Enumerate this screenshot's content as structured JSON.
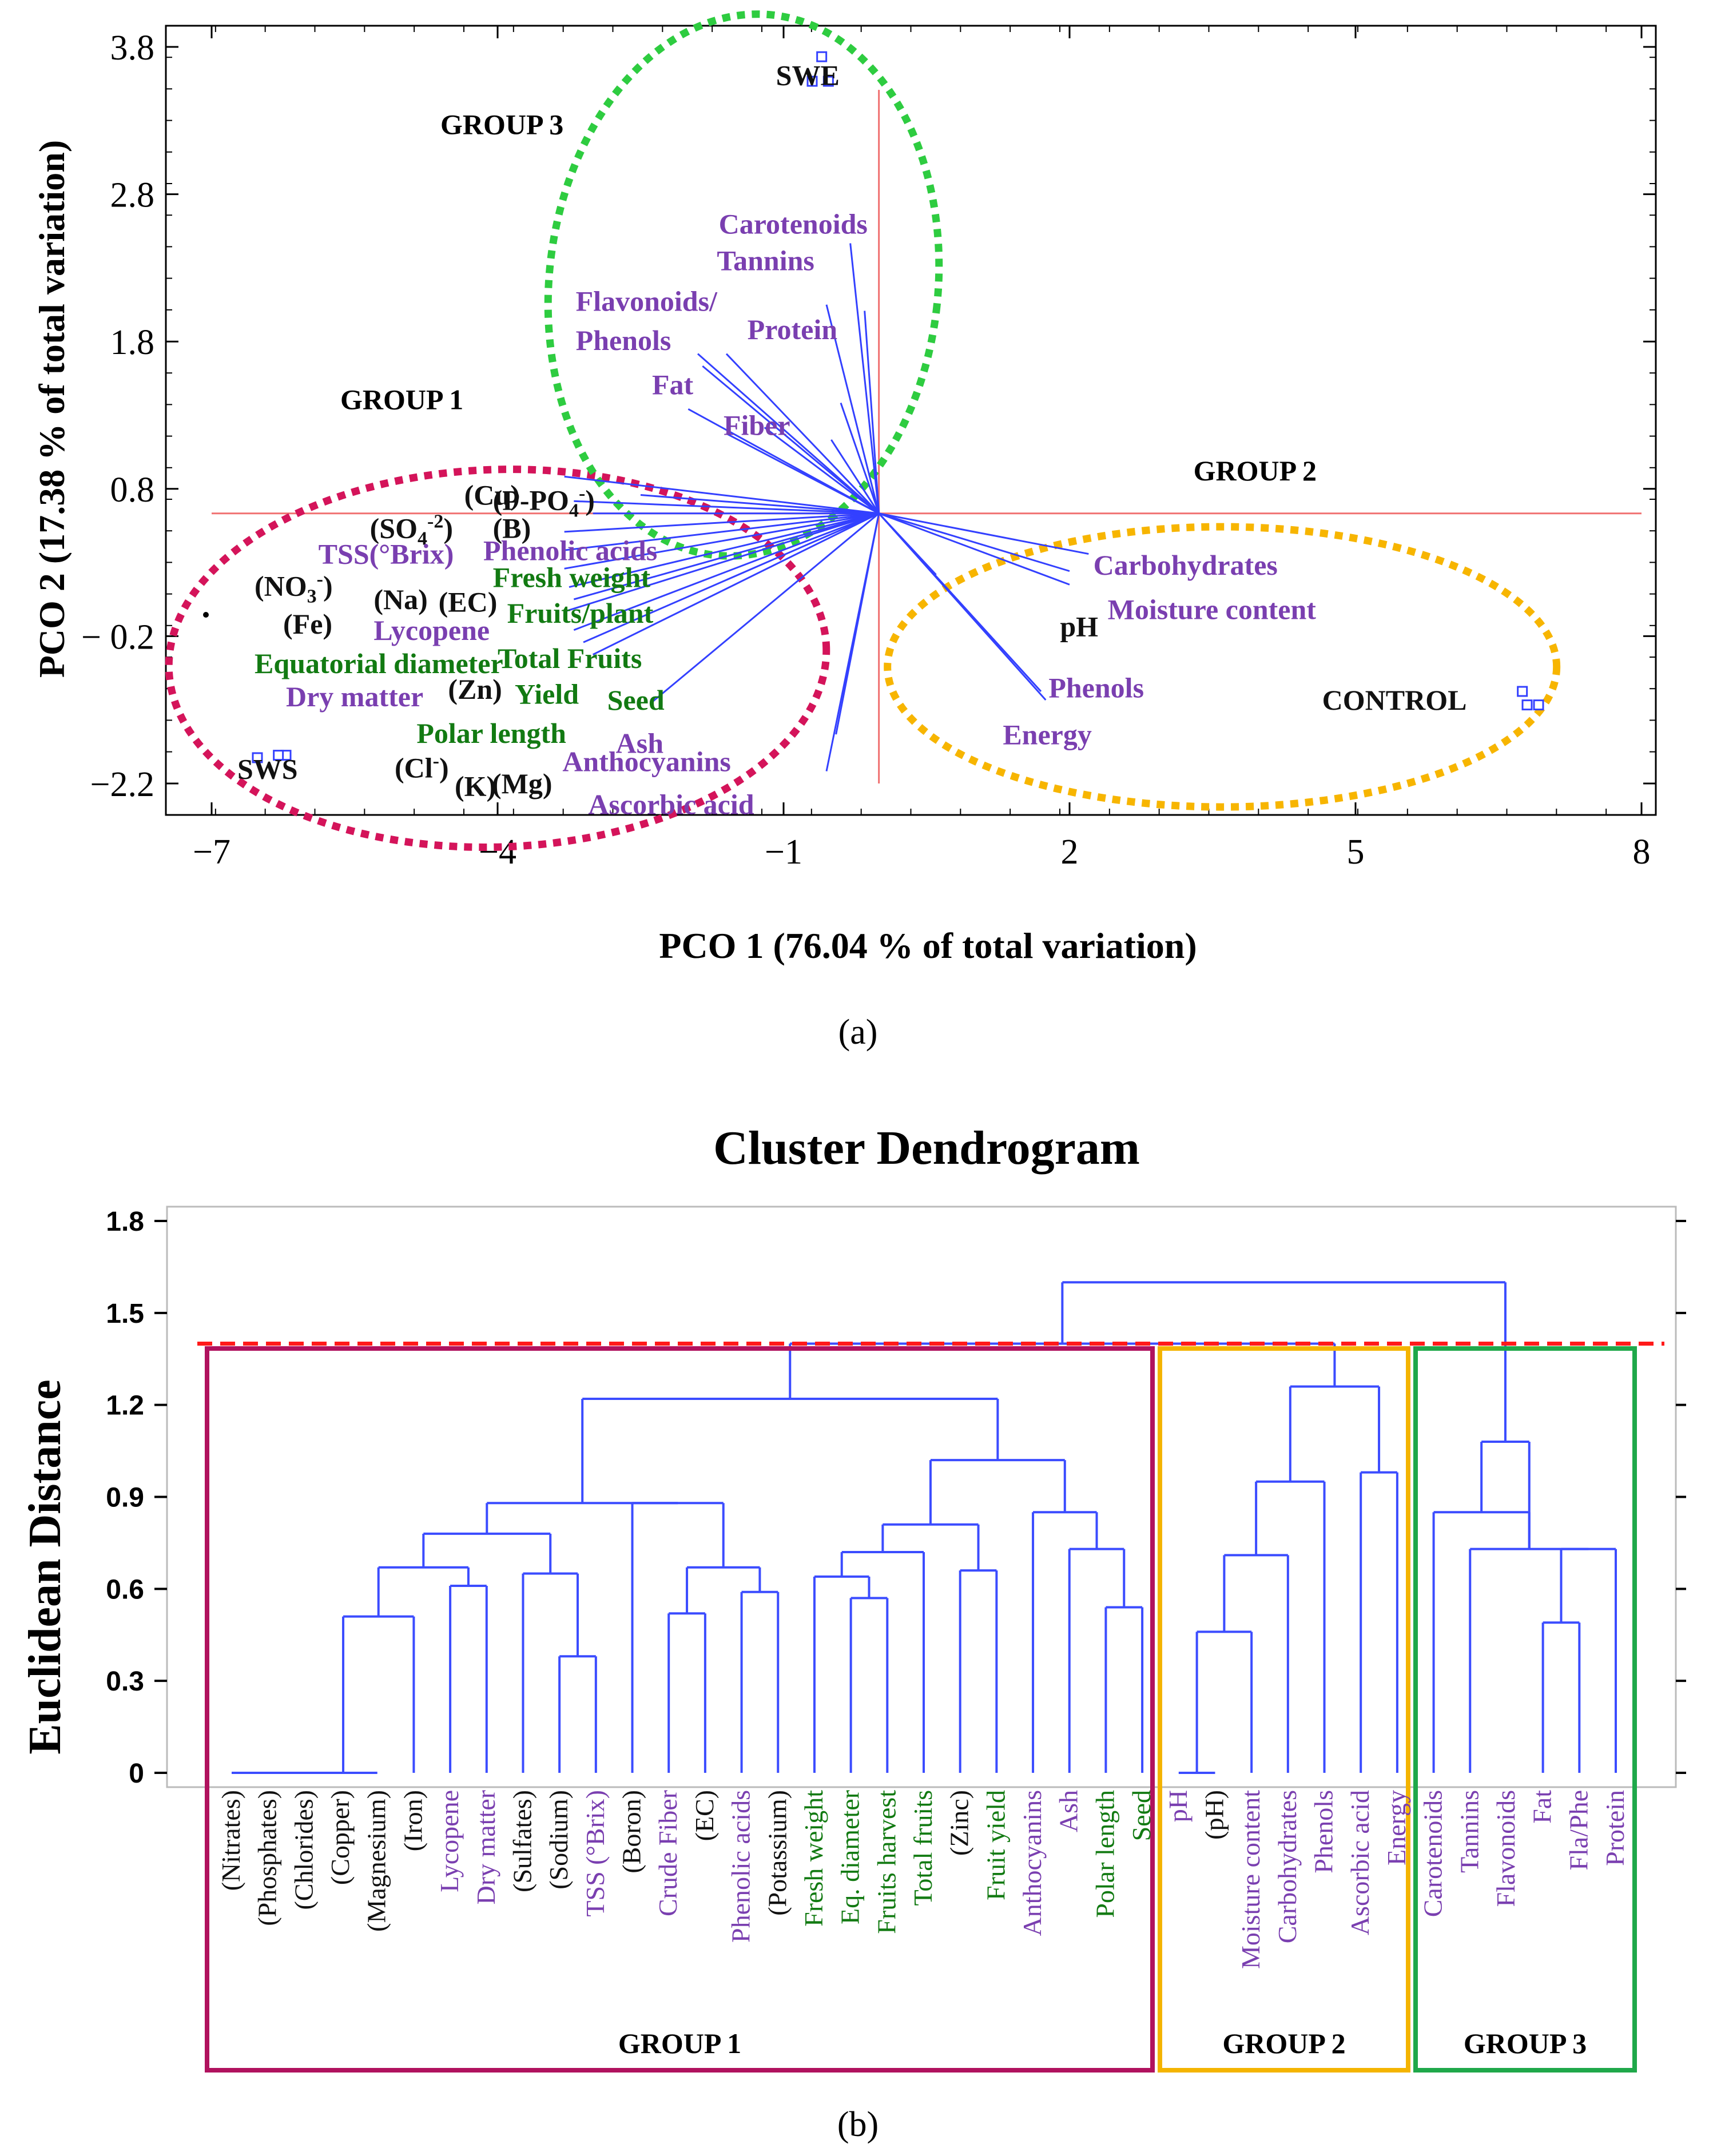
{
  "colors": {
    "group1": "#d4145a",
    "group2": "#f7b500",
    "group3": "#2ecc40",
    "vector": "#3340ff",
    "axisline": "#f07070",
    "black": "#111111",
    "purple": "#7a3fb0",
    "green": "#127a12",
    "box1": "#b0125e",
    "box2": "#f4b400",
    "box3": "#1fa84a",
    "cut": "#ff1a1a",
    "dendro": "#3b4cff"
  },
  "chart_data": [
    {
      "type": "scatter",
      "panel_label": "(a)",
      "xlabel": "PCO 1 (76.04 % of total variation)",
      "ylabel": "PCO 2 (17.38 % of total variation)",
      "xlim": [
        -7.0,
        8.0
      ],
      "ylim": [
        -2.2,
        3.8
      ],
      "x_ticks": [
        "−7",
        "−4",
        "−1",
        "2",
        "5",
        "8"
      ],
      "y_ticks": [
        "−2.2",
        "− 0.2",
        "0.8",
        "1.8",
        "2.8",
        "3.8"
      ],
      "groups": [
        {
          "name": "GROUP 1",
          "color": "group1"
        },
        {
          "name": "GROUP 2",
          "color": "group2"
        },
        {
          "name": "GROUP 3",
          "color": "group3"
        }
      ],
      "samples": [
        {
          "name": "SWE",
          "points": [
            [
              -0.6,
              3.72
            ],
            [
              -0.7,
              3.52
            ],
            [
              -0.53,
              3.52
            ]
          ]
        },
        {
          "name": "SWS",
          "points": [
            [
              -6.22,
              -1.97
            ],
            [
              -6.52,
              -1.99
            ],
            [
              -6.3,
              -1.97
            ]
          ]
        },
        {
          "name": "CONTROL",
          "points": [
            [
              6.75,
              -1.45
            ],
            [
              6.8,
              -1.56
            ],
            [
              6.92,
              -1.56
            ]
          ]
        }
      ],
      "vectors": [
        [
          -3.3,
          -0.45
        ],
        [
          -3.25,
          -0.6
        ],
        [
          -3.2,
          -0.7
        ],
        [
          -3.3,
          -0.8
        ],
        [
          -3.2,
          -0.95
        ],
        [
          -3.1,
          -1.05
        ],
        [
          -3.0,
          -1.15
        ],
        [
          -2.4,
          -1.55
        ],
        [
          -0.55,
          -2.1
        ],
        [
          -0.45,
          -1.8
        ],
        [
          -3.3,
          -0.3
        ],
        [
          -3.3,
          -0.15
        ],
        [
          -3.0,
          0.0
        ],
        [
          -3.2,
          0.1
        ],
        [
          -2.5,
          0.15
        ],
        [
          -3.3,
          0.3
        ],
        [
          -2.0,
          0.85
        ],
        [
          -1.6,
          0.65
        ],
        [
          -1.9,
          1.3
        ],
        [
          -1.85,
          1.2
        ],
        [
          -1.6,
          1.3
        ],
        [
          -0.55,
          1.7
        ],
        [
          -0.3,
          2.2
        ],
        [
          -0.15,
          1.65
        ],
        [
          -1.2,
          0.7
        ],
        [
          -0.4,
          0.9
        ],
        [
          -0.5,
          0.6
        ],
        [
          2.0,
          -0.47
        ],
        [
          2.2,
          -0.33
        ],
        [
          2.0,
          -0.58
        ],
        [
          1.7,
          -1.45
        ],
        [
          1.75,
          -1.52
        ],
        [
          0.6,
          -0.5
        ]
      ],
      "labels": [
        {
          "text": "SWE",
          "x": -1.08,
          "y": 3.49,
          "color": "black"
        },
        {
          "text": "GROUP 3",
          "x": -4.6,
          "y": 3.09,
          "color": "black"
        },
        {
          "text": "Carotenoids",
          "x": -1.68,
          "y": 2.28,
          "color": "purple"
        },
        {
          "text": "Tannins",
          "x": -1.7,
          "y": 1.98,
          "color": "purple"
        },
        {
          "text": "Flavonoids/",
          "x": -3.18,
          "y": 1.65,
          "color": "purple"
        },
        {
          "text": "Phenols",
          "x": -3.18,
          "y": 1.33,
          "color": "purple"
        },
        {
          "text": "Protein",
          "x": -1.38,
          "y": 1.42,
          "color": "purple"
        },
        {
          "text": "Fat",
          "x": -2.38,
          "y": 0.97,
          "color": "purple"
        },
        {
          "text": "Fiber",
          "x": -1.63,
          "y": 0.64,
          "color": "purple"
        },
        {
          "text": "GROUP 1",
          "x": -5.65,
          "y": 0.85,
          "color": "black"
        },
        {
          "text": "GROUP 2",
          "x": 3.3,
          "y": 0.27,
          "color": "black"
        },
        {
          "text": "Carbohydrates",
          "x": 2.25,
          "y": -0.5,
          "color": "purple"
        },
        {
          "text": "Moisture content",
          "x": 2.4,
          "y": -0.86,
          "color": "purple"
        },
        {
          "text": "pH",
          "x": 1.9,
          "y": -1.0,
          "color": "black"
        },
        {
          "text": "Phenols",
          "x": 1.78,
          "y": -1.5,
          "color": "purple"
        },
        {
          "text": "Energy",
          "x": 1.3,
          "y": -1.88,
          "color": "purple"
        },
        {
          "text": "CONTROL",
          "x": 4.65,
          "y": -1.6,
          "color": "black"
        },
        {
          "text": "(Cu)",
          "x": -4.35,
          "y": 0.07,
          "color": "black"
        },
        {
          "text": "(P-PO",
          "x": -4.05,
          "y": 0.03,
          "color": "black"
        },
        {
          "text": "(SO",
          "x": -5.34,
          "y": -0.2,
          "color": "black"
        },
        {
          "text": "(B)",
          "x": -4.05,
          "y": -0.2,
          "color": "black"
        },
        {
          "text": "TSS(°Brix)",
          "x": -5.88,
          "y": -0.41,
          "color": "purple"
        },
        {
          "text": "Phenolic acids",
          "x": -4.15,
          "y": -0.38,
          "color": "purple"
        },
        {
          "text": "Fresh weight",
          "x": -4.05,
          "y": -0.6,
          "color": "green"
        },
        {
          "text": "(NO",
          "x": -6.55,
          "y": -0.67,
          "color": "black"
        },
        {
          "text": "(Na)",
          "x": -5.3,
          "y": -0.78,
          "color": "black"
        },
        {
          "text": "(EC)",
          "x": -4.62,
          "y": -0.8,
          "color": "black"
        },
        {
          "text": "Fruits/plant",
          "x": -3.9,
          "y": -0.89,
          "color": "green"
        },
        {
          "text": "(Fe)",
          "x": -6.25,
          "y": -0.98,
          "color": "black"
        },
        {
          "text": "Lycopene",
          "x": -5.3,
          "y": -1.03,
          "color": "purple"
        },
        {
          "text": "Equatorial diameter",
          "x": -6.55,
          "y": -1.3,
          "color": "green"
        },
        {
          "text": "Total Fruits",
          "x": -4.0,
          "y": -1.26,
          "color": "green"
        },
        {
          "text": "Dry matter",
          "x": -6.22,
          "y": -1.57,
          "color": "purple"
        },
        {
          "text": "(Zn)",
          "x": -4.52,
          "y": -1.51,
          "color": "black"
        },
        {
          "text": "Yield",
          "x": -3.82,
          "y": -1.55,
          "color": "green"
        },
        {
          "text": "Seed",
          "x": -2.85,
          "y": -1.6,
          "color": "green"
        },
        {
          "text": "Polar length",
          "x": -4.85,
          "y": -1.87,
          "color": "green"
        },
        {
          "text": "Ash",
          "x": -2.76,
          "y": -1.95,
          "color": "purple"
        },
        {
          "text": "Anthocyanins",
          "x": -3.32,
          "y": -2.1,
          "color": "purple"
        },
        {
          "text": "SWS",
          "x": -6.73,
          "y": -2.16,
          "color": "black"
        },
        {
          "text": "(Cl",
          "x": -5.08,
          "y": -2.15,
          "color": "black"
        },
        {
          "text": "(K)",
          "x": -4.45,
          "y": -2.3,
          "color": "black"
        },
        {
          "text": "(Mg)",
          "x": -4.06,
          "y": -2.28,
          "color": "black"
        },
        {
          "text": "Ascorbic acid",
          "x": -3.05,
          "y": -2.45,
          "color": "purple"
        }
      ]
    },
    {
      "type": "dendrogram",
      "panel_label": "(b)",
      "title": "Cluster Dendrogram",
      "ylabel": "Euclidean Distance",
      "ylim": [
        0,
        1.8
      ],
      "y_ticks": [
        "0",
        "0.3",
        "0.6",
        "0.9",
        "1.2",
        "1.5",
        "1.8"
      ],
      "cut_height": 1.4,
      "leaves": [
        {
          "label": "(Nitrates)",
          "color": "black"
        },
        {
          "label": "(Phosphates)",
          "color": "black"
        },
        {
          "label": "(Chlorides)",
          "color": "black"
        },
        {
          "label": "(Copper)",
          "color": "black"
        },
        {
          "label": "(Magnesium)",
          "color": "black"
        },
        {
          "label": "(Iron)",
          "color": "black"
        },
        {
          "label": "Lycopene",
          "color": "purple"
        },
        {
          "label": "Dry matter",
          "color": "purple"
        },
        {
          "label": "(Sulfates)",
          "color": "black"
        },
        {
          "label": "(Sodium)",
          "color": "black"
        },
        {
          "label": "TSS (°Brix)",
          "color": "purple"
        },
        {
          "label": "(Boron)",
          "color": "black"
        },
        {
          "label": "Crude Fiber",
          "color": "purple"
        },
        {
          "label": "(EC)",
          "color": "black"
        },
        {
          "label": "Phenolic acids",
          "color": "purple"
        },
        {
          "label": "(Potassium)",
          "color": "black"
        },
        {
          "label": "Fresh weight",
          "color": "green"
        },
        {
          "label": "Eq. diameter",
          "color": "green"
        },
        {
          "label": "Fruits harvest",
          "color": "green"
        },
        {
          "label": "Total fruits",
          "color": "green"
        },
        {
          "label": "(Zinc)",
          "color": "black"
        },
        {
          "label": "Fruit yield",
          "color": "green"
        },
        {
          "label": "Anthocyanins",
          "color": "purple"
        },
        {
          "label": "Ash",
          "color": "purple"
        },
        {
          "label": "Polar length",
          "color": "green"
        },
        {
          "label": "Seed",
          "color": "green"
        },
        {
          "label": "pH",
          "color": "purple"
        },
        {
          "label": "(pH)",
          "color": "black"
        },
        {
          "label": "Moisture content",
          "color": "purple"
        },
        {
          "label": "Carbohydrates",
          "color": "purple"
        },
        {
          "label": "Phenols",
          "color": "purple"
        },
        {
          "label": "Ascorbic acid",
          "color": "purple"
        },
        {
          "label": "Energy",
          "color": "purple"
        },
        {
          "label": "Carotenoids",
          "color": "purple"
        },
        {
          "label": "Tannins",
          "color": "purple"
        },
        {
          "label": "Flavonoids",
          "color": "purple"
        },
        {
          "label": "Fat",
          "color": "purple"
        },
        {
          "label": "Fla/Phe",
          "color": "purple"
        },
        {
          "label": "Protein",
          "color": "purple"
        }
      ],
      "merges": [
        [
          0,
          1,
          0.0
        ],
        [
          39,
          2,
          0.0
        ],
        [
          40,
          3,
          0.0
        ],
        [
          41,
          4,
          0.0
        ],
        [
          42,
          5,
          0.51
        ],
        [
          6,
          7,
          0.61
        ],
        [
          43,
          44,
          0.67
        ],
        [
          9,
          10,
          0.38
        ],
        [
          8,
          46,
          0.65
        ],
        [
          45,
          47,
          0.78
        ],
        [
          12,
          13,
          0.52
        ],
        [
          14,
          15,
          0.59
        ],
        [
          49,
          50,
          0.67
        ],
        [
          11,
          51,
          0.88
        ],
        [
          48,
          52,
          0.88
        ],
        [
          17,
          18,
          0.57
        ],
        [
          16,
          54,
          0.64
        ],
        [
          55,
          19,
          0.72
        ],
        [
          20,
          21,
          0.66
        ],
        [
          56,
          57,
          0.81
        ],
        [
          24,
          25,
          0.54
        ],
        [
          59,
          23,
          0.73
        ],
        [
          22,
          60,
          0.85
        ],
        [
          58,
          61,
          1.02
        ],
        [
          53,
          62,
          1.22
        ],
        [
          26,
          27,
          0.0
        ],
        [
          64,
          28,
          0.46
        ],
        [
          65,
          29,
          0.71
        ],
        [
          66,
          30,
          0.95
        ],
        [
          31,
          32,
          0.98
        ],
        [
          67,
          68,
          1.26
        ],
        [
          36,
          37,
          0.49
        ],
        [
          70,
          38,
          0.73
        ],
        [
          34,
          71,
          0.73
        ],
        [
          33,
          72,
          0.85
        ],
        [
          72,
          73,
          1.08
        ],
        [
          63,
          69,
          1.4
        ],
        [
          75,
          74,
          1.6
        ]
      ],
      "boxes": [
        {
          "label": "GROUP 1",
          "from": 0,
          "to": 25,
          "color": "box1"
        },
        {
          "label": "GROUP 2",
          "from": 26,
          "to": 32,
          "color": "box2"
        },
        {
          "label": "GROUP 3",
          "from": 33,
          "to": 38,
          "color": "box3"
        }
      ]
    }
  ]
}
